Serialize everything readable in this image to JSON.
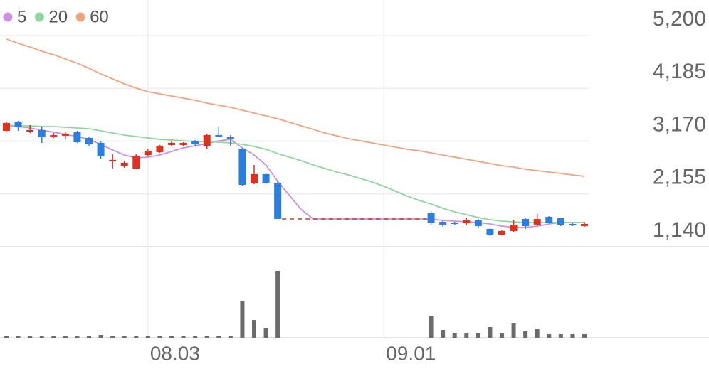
{
  "chart_data": {
    "type": "candlestick",
    "categories": [
      null,
      null,
      null,
      null,
      null,
      null,
      null,
      null,
      null,
      null,
      null,
      null,
      "08.03",
      null,
      null,
      null,
      null,
      null,
      null,
      null,
      null,
      null,
      null,
      null,
      null,
      null,
      null,
      null,
      null,
      null,
      null,
      null,
      "09.01",
      null,
      null,
      null,
      null,
      null,
      null,
      null,
      null,
      null,
      null,
      null,
      null,
      null,
      null,
      null,
      null,
      null
    ],
    "open": [
      3368,
      3546,
      3355,
      3382,
      3259,
      3273,
      3341,
      3232,
      3136,
      2780,
      2698,
      2644,
      2903,
      2958,
      3095,
      3095,
      3177,
      3081,
      3286,
      3245,
      3026,
      2357,
      2535,
      2370,
      null,
      null,
      null,
      null,
      null,
      null,
      null,
      null,
      null,
      null,
      null,
      null,
      1782,
      1618,
      1605,
      1591,
      1646,
      1482,
      1372,
      1441,
      1673,
      1564,
      1714,
      1687,
      1577,
      1536
    ],
    "high": [
      3546,
      3560,
      3478,
      3450,
      3327,
      3341,
      3368,
      3245,
      3163,
      2917,
      2794,
      2917,
      3013,
      3095,
      3177,
      3149,
      3191,
      3314,
      3450,
      3286,
      3040,
      2712,
      2562,
      2398,
      null,
      null,
      null,
      null,
      null,
      null,
      null,
      null,
      null,
      null,
      null,
      null,
      1823,
      1646,
      1618,
      1700,
      1673,
      1509,
      1454,
      1659,
      1687,
      1769,
      1728,
      1700,
      1591,
      1618
    ],
    "low": [
      3355,
      3368,
      3327,
      3136,
      3232,
      3204,
      3136,
      3081,
      2835,
      2644,
      2657,
      2630,
      2876,
      2944,
      3081,
      3067,
      3081,
      3026,
      3259,
      3081,
      2302,
      2343,
      2343,
      1673,
      null,
      null,
      null,
      null,
      null,
      null,
      null,
      null,
      null,
      null,
      null,
      null,
      1550,
      1523,
      1564,
      1564,
      1509,
      1345,
      1359,
      1413,
      1482,
      1536,
      1591,
      1536,
      1536,
      1523
    ],
    "close": [
      3519,
      3437,
      3382,
      3245,
      3286,
      3314,
      3149,
      3108,
      2876,
      2808,
      2753,
      2890,
      2985,
      3081,
      3136,
      3136,
      3108,
      3286,
      3273,
      3218,
      2329,
      2535,
      2370,
      1673,
      null,
      null,
      null,
      null,
      null,
      null,
      null,
      null,
      null,
      null,
      null,
      null,
      1605,
      1564,
      1577,
      1646,
      1536,
      1372,
      1441,
      1564,
      1536,
      1673,
      1605,
      1564,
      1550,
      1577
    ],
    "up_color": "#e0301e",
    "down_color": "#2a7de1",
    "series": [
      {
        "name": "5",
        "color": "#d08fe3",
        "values": [
          3464,
          3450,
          3423,
          3382,
          3341,
          3300,
          3259,
          3204,
          3108,
          2999,
          2903,
          2849,
          2862,
          2903,
          2972,
          3040,
          3081,
          3122,
          3177,
          3204,
          3040,
          2903,
          2712,
          2398,
          2124,
          1851,
          1673,
          1673,
          1673,
          1673,
          1673,
          1673,
          1673,
          1673,
          1673,
          1673,
          1673,
          1646,
          1632,
          1618,
          1605,
          1577,
          1536,
          1509,
          1509,
          1536,
          1577,
          1605,
          1605,
          1605
        ]
      },
      {
        "name": "20",
        "color": "#8fd6a0",
        "values": [
          3478,
          3464,
          3464,
          3450,
          3450,
          3437,
          3423,
          3409,
          3368,
          3327,
          3286,
          3259,
          3232,
          3204,
          3191,
          3177,
          3163,
          3163,
          3149,
          3136,
          3108,
          3067,
          3013,
          2931,
          2862,
          2794,
          2712,
          2644,
          2575,
          2521,
          2452,
          2384,
          2302,
          2206,
          2111,
          2029,
          1960,
          1878,
          1810,
          1755,
          1700,
          1659,
          1632,
          1618,
          1605,
          1605,
          1605,
          1605,
          1605,
          1605
        ]
      },
      {
        "name": "60",
        "color": "#f3a27e",
        "values": [
          5132,
          5050,
          4981,
          4899,
          4831,
          4749,
          4667,
          4571,
          4462,
          4366,
          4270,
          4188,
          4120,
          4079,
          4038,
          3997,
          3956,
          3901,
          3860,
          3819,
          3765,
          3710,
          3655,
          3601,
          3532,
          3464,
          3396,
          3327,
          3273,
          3218,
          3177,
          3136,
          3095,
          3054,
          3013,
          2985,
          2944,
          2903,
          2862,
          2821,
          2780,
          2739,
          2698,
          2671,
          2630,
          2603,
          2575,
          2548,
          2521,
          2493
        ]
      }
    ],
    "volume": [
      2,
      2,
      2,
      2,
      2,
      2,
      2,
      2,
      4,
      3,
      3,
      3,
      3,
      3,
      3,
      3,
      3,
      3,
      3,
      3,
      51,
      25,
      13,
      94,
      null,
      null,
      null,
      null,
      null,
      null,
      null,
      null,
      null,
      null,
      null,
      null,
      30,
      11,
      6,
      6,
      6,
      15,
      6,
      20,
      9,
      12,
      5,
      5,
      5,
      5
    ],
    "volume_color": "#6b6b6b",
    "volume_lim": [
      0,
      125
    ],
    "ylim": [
      1140,
      5883
    ],
    "yticks": [
      {
        "value": 1140,
        "label": "1,140"
      },
      {
        "value": 2155,
        "label": "2,155"
      },
      {
        "value": 3170,
        "label": "3,170"
      },
      {
        "value": 4185,
        "label": "4,185"
      },
      {
        "value": 5200,
        "label": "5,200"
      }
    ],
    "grid": true,
    "legend": "top-left"
  }
}
